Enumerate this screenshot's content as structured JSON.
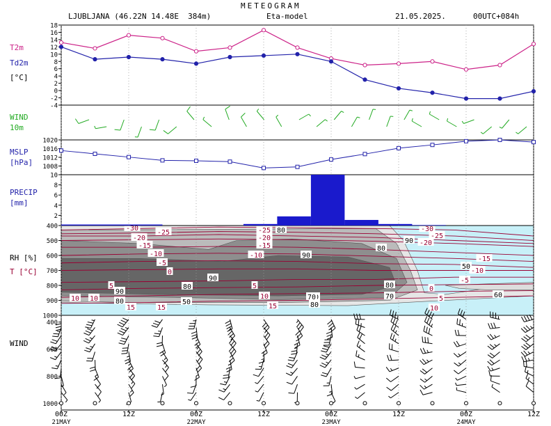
{
  "header": {
    "title": "METEOGRAM",
    "station": "LJUBLJANA (46.22N 14.48E  384m)",
    "model": "Eta-model",
    "date": "21.05.2025.",
    "run": "00UTC+084h"
  },
  "panel_labels": {
    "t2m": "T2m",
    "td2m": "Td2m",
    "t_unit": "[°C]",
    "wind10": "WIND",
    "wind10_sub": "10m",
    "mslp": "MSLP",
    "mslp_unit": "[hPa]",
    "precip": "PRECIP",
    "precip_unit": "[mm]",
    "rh": "RH [%]",
    "t": "T [°C]",
    "wind_prof": "WIND"
  },
  "colors": {
    "t2m": "#cc2288",
    "td2m": "#2222aa",
    "wind10": "#22aa22",
    "mslp": "#2222aa",
    "precip": "#1a1acc",
    "temp_contour": "#990033",
    "sky": "#c8f0f8"
  },
  "chart_data": [
    {
      "type": "line",
      "panel": "temperature",
      "x": [
        "21MAY 00Z",
        "21MAY 06Z",
        "21MAY 12Z",
        "21MAY 18Z",
        "22MAY 00Z",
        "22MAY 06Z",
        "22MAY 12Z",
        "22MAY 18Z",
        "23MAY 00Z",
        "23MAY 06Z",
        "23MAY 12Z",
        "23MAY 18Z",
        "24MAY 00Z",
        "24MAY 06Z",
        "24MAY 12Z"
      ],
      "series": [
        {
          "name": "T2m",
          "values": [
            13.2,
            11.6,
            15.2,
            14.4,
            10.8,
            11.8,
            16.6,
            11.8,
            8.8,
            7.0,
            7.4,
            8.0,
            5.8,
            7.0,
            12.8
          ]
        },
        {
          "name": "Td2m",
          "values": [
            12.0,
            8.6,
            9.2,
            8.6,
            7.4,
            9.2,
            9.6,
            10.0,
            8.0,
            3.0,
            0.6,
            -0.6,
            -2.2,
            -2.2,
            -0.2
          ]
        }
      ],
      "yticks": [
        -4,
        -2,
        0,
        2,
        4,
        6,
        8,
        10,
        12,
        14,
        16,
        18
      ],
      "ylim": [
        -4,
        18
      ]
    },
    {
      "type": "wind_barbs",
      "panel": "wind10m",
      "points": [
        {
          "dir": 250,
          "speed": 10
        },
        {
          "dir": 260,
          "speed": 5
        },
        {
          "dir": 200,
          "speed": 10
        },
        {
          "dir": 200,
          "speed": 5
        },
        {
          "dir": 200,
          "speed": 10
        },
        {
          "dir": 230,
          "speed": 10
        },
        {
          "dir": 320,
          "speed": 10
        },
        {
          "dir": 310,
          "speed": 5
        },
        {
          "dir": 340,
          "speed": 10
        },
        {
          "dir": 330,
          "speed": 10
        },
        {
          "dir": 320,
          "speed": 5
        },
        {
          "dir": 330,
          "speed": 5
        },
        {
          "dir": 60,
          "speed": 5
        },
        {
          "dir": 50,
          "speed": 5
        },
        {
          "dir": 40,
          "speed": 5
        },
        {
          "dir": 30,
          "speed": 5
        },
        {
          "dir": 20,
          "speed": 5
        },
        {
          "dir": 20,
          "speed": 5
        },
        {
          "dir": 30,
          "speed": 5
        },
        {
          "dir": 300,
          "speed": 5
        },
        {
          "dir": 300,
          "speed": 5
        },
        {
          "dir": 300,
          "speed": 5
        },
        {
          "dir": 250,
          "speed": 5
        },
        {
          "dir": 230,
          "speed": 5
        },
        {
          "dir": 220,
          "speed": 5
        },
        {
          "dir": 230,
          "speed": 5
        }
      ]
    },
    {
      "type": "line",
      "panel": "mslp",
      "series": [
        {
          "name": "MSLP",
          "values": [
            1015.1,
            1013.6,
            1012.1,
            1010.6,
            1010.4,
            1010.0,
            1007.1,
            1007.6,
            1011.0,
            1013.5,
            1016.2,
            1017.7,
            1019.4,
            1020.0,
            1019.0
          ]
        }
      ],
      "yticks": [
        1008,
        1012,
        1016,
        1020
      ],
      "ylim": [
        1004,
        1020
      ]
    },
    {
      "type": "bar",
      "panel": "precip",
      "bars": [
        {
          "x0": 0,
          "x1": 3,
          "value": 0.2
        },
        {
          "x0": 5.4,
          "x1": 6.4,
          "value": 0.3
        },
        {
          "x0": 6.4,
          "x1": 7.4,
          "value": 1.8
        },
        {
          "x0": 7.4,
          "x1": 8.4,
          "value": 10.0
        },
        {
          "x0": 8.4,
          "x1": 9.4,
          "value": 1.1
        },
        {
          "x0": 9.4,
          "x1": 10.4,
          "value": 0.3
        },
        {
          "x0": 10.4,
          "x1": 11.4,
          "value": 0.1
        }
      ],
      "yticks": [
        2,
        4,
        6,
        8,
        10
      ],
      "ylim": [
        0,
        10
      ]
    },
    {
      "type": "heatmap",
      "panel": "rh_temperature_cross_section",
      "yticks": [
        400,
        500,
        600,
        700,
        800,
        900,
        1000
      ],
      "ylim": [
        400,
        1000
      ],
      "temp_labels": [
        "-30",
        "-25",
        "-20",
        "-15",
        "-10",
        "-5",
        "0",
        "5",
        "10",
        "15",
        "-25",
        "-20",
        "-15",
        "-10",
        "5",
        "10",
        "15",
        "-30",
        "-25",
        "-20",
        "-15",
        "-10",
        "-5",
        "0",
        "5",
        "10",
        "10",
        "15"
      ],
      "rh_labels": [
        "80",
        "90",
        "80",
        "90",
        "80",
        "90",
        "80",
        "90",
        "70",
        "90",
        "60",
        "50",
        "50",
        "70",
        "80",
        "70",
        "80"
      ]
    },
    {
      "type": "wind_barbs",
      "panel": "wind_profile",
      "yticks": [
        400,
        600,
        800,
        1000
      ]
    }
  ],
  "x_axis": {
    "ticks": [
      "00Z",
      "12Z",
      "00Z",
      "12Z",
      "00Z",
      "12Z",
      "00Z",
      "12Z"
    ],
    "days": [
      "21MAY",
      "22MAY",
      "23MAY",
      "24MAY"
    ]
  }
}
